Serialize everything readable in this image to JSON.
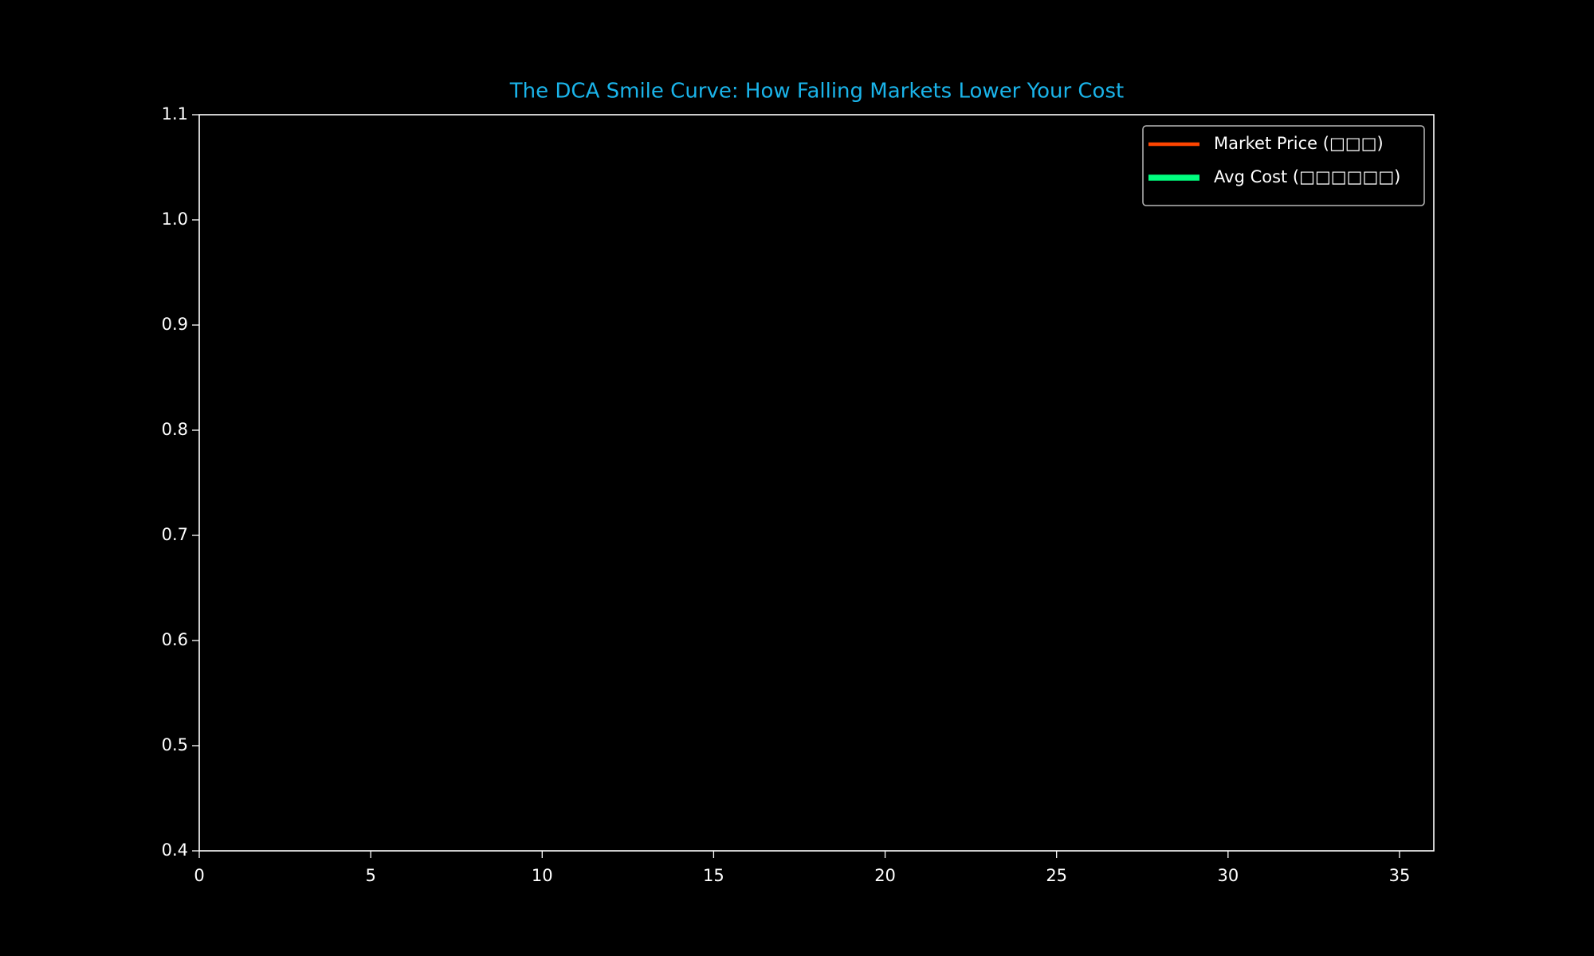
{
  "chart_data": {
    "type": "line",
    "title": "The DCA Smile Curve: How Falling Markets Lower Your Cost",
    "x": [],
    "series": [
      {
        "name": "Market Price (□□□)",
        "color": "#ff4500",
        "values": []
      },
      {
        "name": "Avg Cost (□□□□□□)",
        "color": "#00ff7f",
        "values": []
      }
    ],
    "xlim": [
      0,
      36
    ],
    "xticks": [
      0,
      5,
      10,
      15,
      20,
      25,
      30,
      35
    ],
    "ylim": [
      0.4,
      1.1
    ],
    "yticks": [
      0.4,
      0.5,
      0.6,
      0.7,
      0.8,
      0.9,
      {
        "value": 1,
        "label": "1.0"
      },
      1.1
    ],
    "legend": "upper right"
  }
}
